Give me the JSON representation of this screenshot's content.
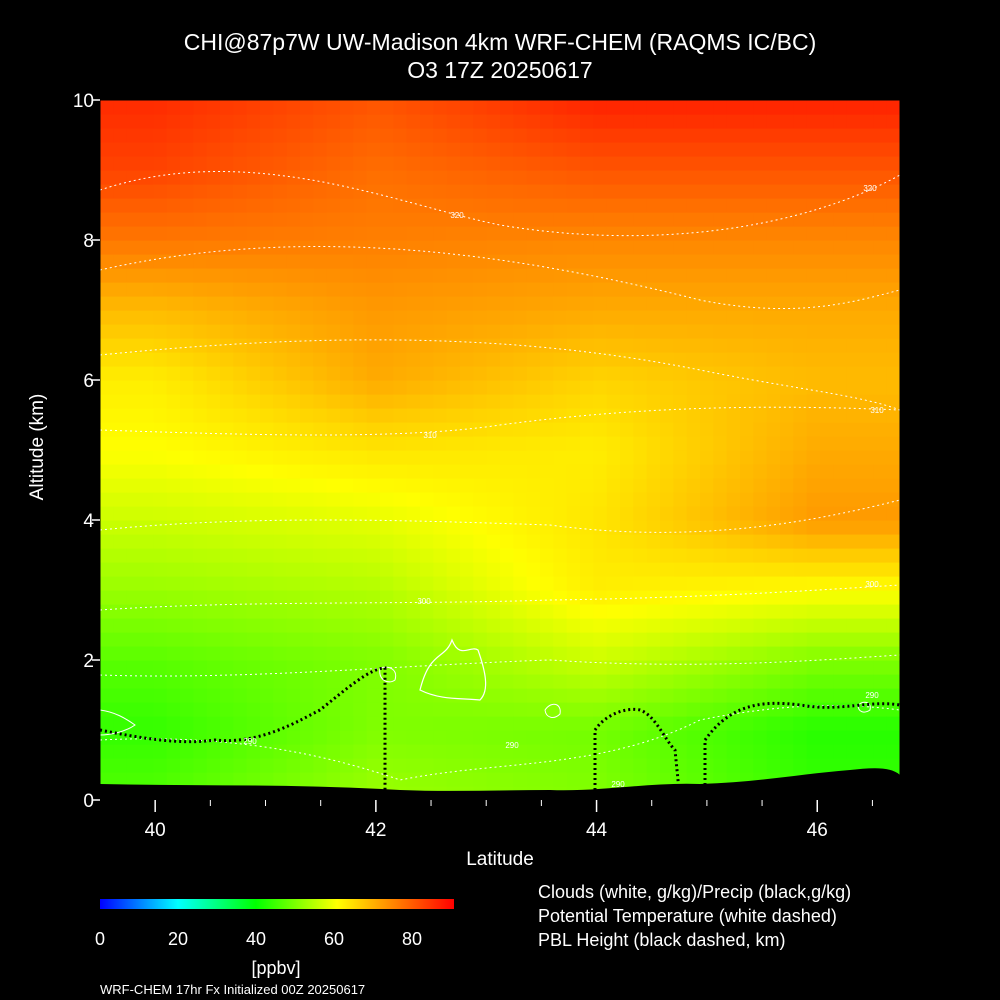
{
  "chart_data": {
    "type": "heatmap",
    "title_line1": "CHI@87p7W UW-Madison 4km WRF-CHEM (RAQMS IC/BC)",
    "title_line2": "O3 17Z 20250617",
    "xlabel": "Latitude",
    "ylabel": "Altitude (km)",
    "xlim": [
      39.5,
      46.75
    ],
    "ylim": [
      0,
      10
    ],
    "xticks": [
      "40",
      "42",
      "44",
      "46"
    ],
    "yticks": [
      "0",
      "2",
      "4",
      "6",
      "8",
      "10"
    ],
    "x_tick_values": [
      40,
      42,
      44,
      46
    ],
    "y_tick_values": [
      0,
      2,
      4,
      6,
      8,
      10
    ],
    "colorbar": {
      "label": "[ppbv]",
      "range": [
        0,
        90
      ],
      "ticks": [
        "0",
        "20",
        "40",
        "60",
        "80"
      ],
      "tick_values": [
        0,
        20,
        40,
        60,
        80
      ],
      "colors": [
        "#0000ff",
        "#00ffff",
        "#00ff00",
        "#ffff00",
        "#ff0000"
      ]
    },
    "ozone_levels_by_altitude": {
      "altitude_km": [
        0.2,
        1,
        2,
        3,
        4,
        5,
        6,
        7,
        8,
        9,
        10
      ],
      "lat_40_ppbv": [
        46,
        44,
        47,
        52,
        56,
        60,
        62,
        68,
        76,
        82,
        85
      ],
      "lat_42_ppbv": [
        52,
        50,
        50,
        54,
        58,
        63,
        70,
        72,
        75,
        77,
        80
      ],
      "lat_44_ppbv": [
        50,
        49,
        56,
        62,
        63,
        62,
        65,
        70,
        74,
        80,
        86
      ],
      "lat_46_ppbv": [
        44,
        43,
        50,
        60,
        72,
        70,
        68,
        70,
        74,
        80,
        86
      ]
    },
    "potential_temperature_labels": [
      "320",
      "320",
      "310",
      "310",
      "300",
      "300",
      "290",
      "290",
      "290",
      "290"
    ],
    "legend": [
      "Clouds (white, g/kg)/Precip (black,g/kg)",
      "Potential Temperature (white dashed)",
      "PBL Height (black dashed, km)"
    ],
    "footer": "WRF-CHEM 17hr  Fx Initialized 00Z 20250617"
  }
}
